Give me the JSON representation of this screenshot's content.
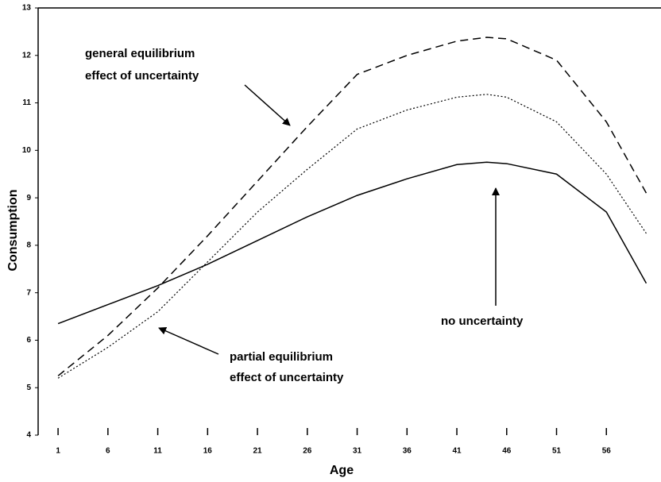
{
  "chart_data": {
    "type": "line",
    "xlabel": "Age",
    "ylabel": "Consumption",
    "x": [
      1,
      6,
      11,
      16,
      21,
      26,
      31,
      36,
      41,
      44,
      46,
      51,
      56,
      60
    ],
    "series": [
      {
        "color": "#000000",
        "dash": "solid",
        "values": [
          6.35,
          6.75,
          7.15,
          7.6,
          8.1,
          8.6,
          9.05,
          9.4,
          9.7,
          9.75,
          9.72,
          9.5,
          8.7,
          7.2
        ]
      },
      {
        "color": "#000000",
        "dash": "dashed",
        "values": [
          5.25,
          6.1,
          7.1,
          8.2,
          9.35,
          10.5,
          11.6,
          12.0,
          12.3,
          12.38,
          12.35,
          11.9,
          10.6,
          9.1
        ]
      },
      {
        "color": "#000000",
        "dash": "dotted",
        "values": [
          5.2,
          5.85,
          6.6,
          7.65,
          8.7,
          9.6,
          10.45,
          10.85,
          11.12,
          11.18,
          11.12,
          10.6,
          9.5,
          8.25
        ]
      }
    ],
    "annotations": [
      {
        "lines": [
          "general equilibrium",
          "effect of uncertainty"
        ]
      },
      {
        "lines": [
          "no uncertainty"
        ]
      },
      {
        "lines": [
          "partial equilibrium",
          "effect of uncertainty"
        ]
      }
    ],
    "xlim": [
      -1,
      61
    ],
    "ylim": [
      4,
      13
    ],
    "xticks": [
      1,
      6,
      11,
      16,
      21,
      26,
      31,
      36,
      41,
      46,
      51,
      56
    ],
    "yticks": [
      4,
      5,
      6,
      7,
      8,
      9,
      10,
      11,
      12,
      13
    ]
  }
}
